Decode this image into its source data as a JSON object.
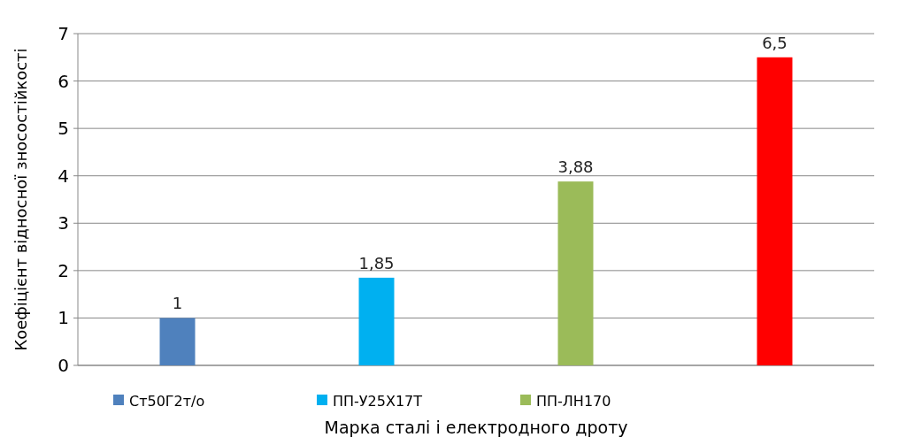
{
  "chart_data": {
    "type": "bar",
    "xlabel": "Марка сталі і електродного дроту",
    "ylabel": "Коефіцієнт відносної зносостійкості",
    "categories": [
      null,
      null,
      null,
      null
    ],
    "series": [
      {
        "name": "Ст50Г2т/о",
        "color": "#4f81bd",
        "values": [
          1,
          null,
          null,
          null
        ],
        "value_labels": [
          "1",
          null,
          null,
          null
        ]
      },
      {
        "name": "ПП-У25Х17Т",
        "color": "#00b0f0",
        "values": [
          null,
          1.85,
          null,
          null
        ],
        "value_labels": [
          null,
          "1,85",
          null,
          null
        ]
      },
      {
        "name": "ПП-ЛН170",
        "color": "#9bbb59",
        "values": [
          null,
          null,
          3.88,
          null
        ],
        "value_labels": [
          null,
          null,
          "3,88",
          null
        ]
      },
      {
        "color": "#ff0000",
        "values": [
          null,
          null,
          null,
          6.5
        ],
        "value_labels": [
          null,
          null,
          null,
          "6,5"
        ]
      }
    ],
    "ylim": [
      0,
      7
    ],
    "yticks": [
      0,
      1,
      2,
      3,
      4,
      5,
      6,
      7
    ],
    "grid": "y",
    "legend": "bottom"
  }
}
